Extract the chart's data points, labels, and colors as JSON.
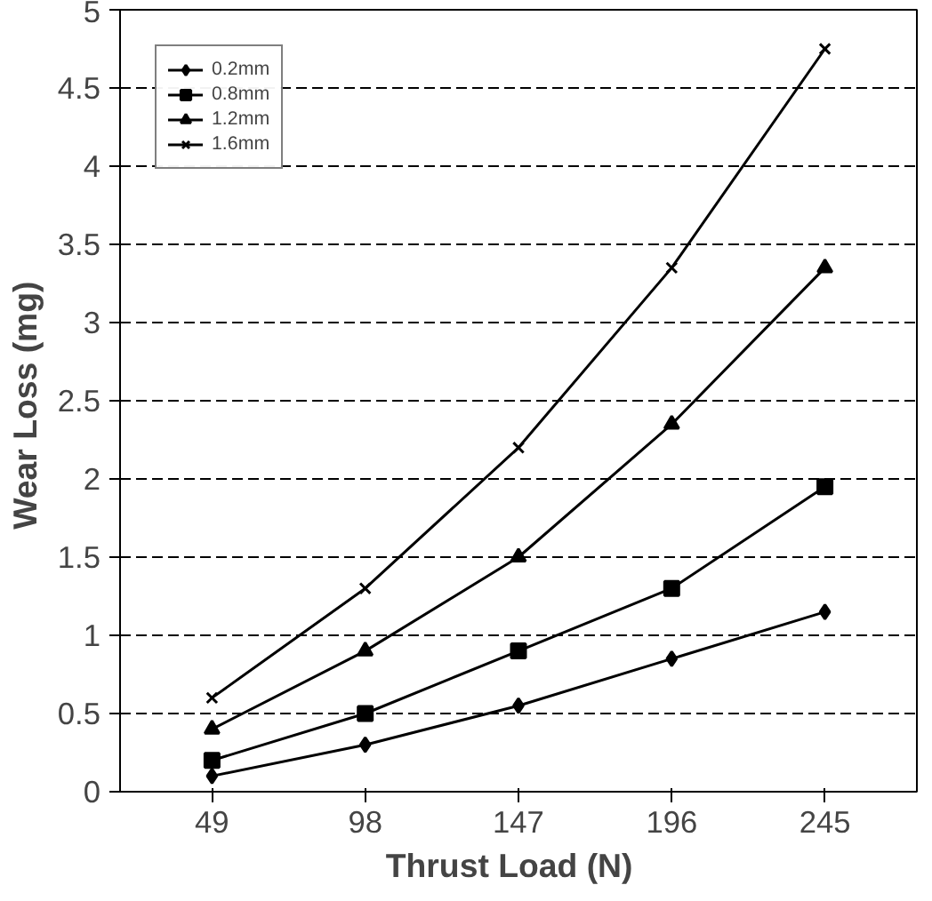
{
  "chart_data": {
    "type": "line",
    "xlabel": "Thrust  Load  (N)",
    "ylabel": "Wear Loss  (mg)",
    "categories": [
      "49",
      "98",
      "147",
      "196",
      "245"
    ],
    "ylim": [
      0,
      5
    ],
    "yticks": [
      0,
      0.5,
      1,
      1.5,
      2,
      2.5,
      3,
      3.5,
      4,
      4.5,
      5
    ],
    "grid": "y",
    "legend": "top left",
    "line_style": "solid",
    "series": [
      {
        "name": "0.2mm",
        "color": "#000000",
        "marker": "diamond",
        "values": [
          0.1,
          0.3,
          0.55,
          0.85,
          1.15
        ]
      },
      {
        "name": "0.8mm",
        "color": "#000000",
        "marker": "square",
        "values": [
          0.2,
          0.5,
          0.9,
          1.3,
          1.95
        ]
      },
      {
        "name": "1.2mm",
        "color": "#000000",
        "marker": "triangle",
        "values": [
          0.4,
          0.9,
          1.5,
          2.35,
          3.35
        ]
      },
      {
        "name": "1.6mm",
        "color": "#000000",
        "marker": "cross",
        "values": [
          0.6,
          1.3,
          2.2,
          3.35,
          4.75
        ]
      }
    ]
  }
}
